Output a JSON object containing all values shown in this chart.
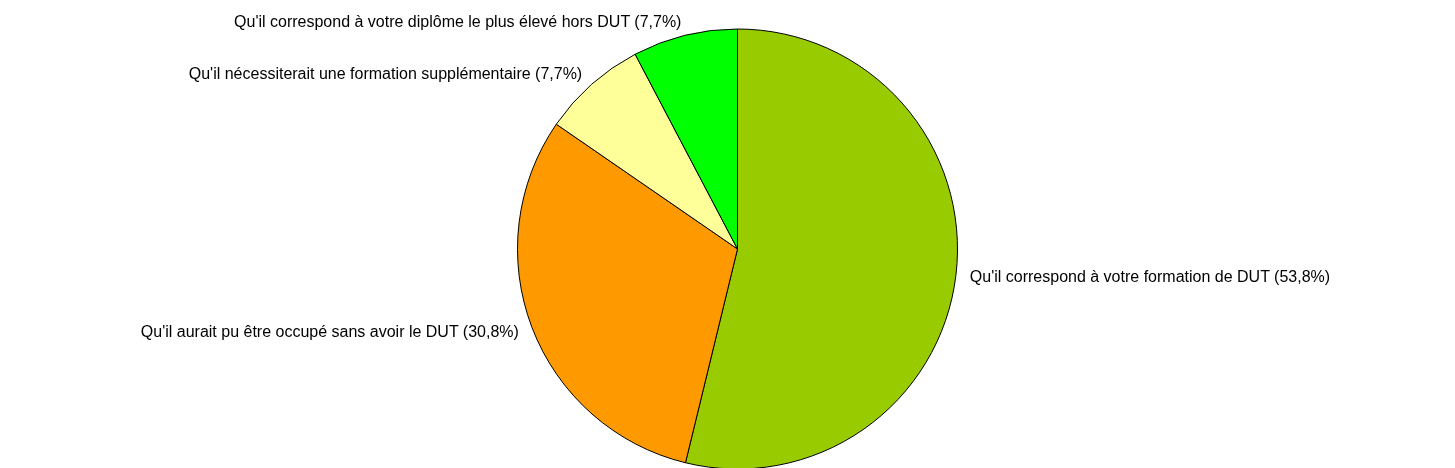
{
  "chart_data": {
    "type": "pie",
    "categories": [
      "Qu'il correspond à votre formation de DUT (53,8%)",
      "Qu'il aurait pu être occupé sans avoir le DUT (30,8%)",
      "Qu'il nécessiterait une formation supplémentaire (7,7%)",
      "Qu'il correspond à votre diplôme le plus élevé hors DUT (7,7%)"
    ],
    "values": [
      53.8,
      30.8,
      7.7,
      7.7
    ],
    "colors": [
      "#99cc00",
      "#ff9900",
      "#ffff99",
      "#00ff00"
    ]
  }
}
